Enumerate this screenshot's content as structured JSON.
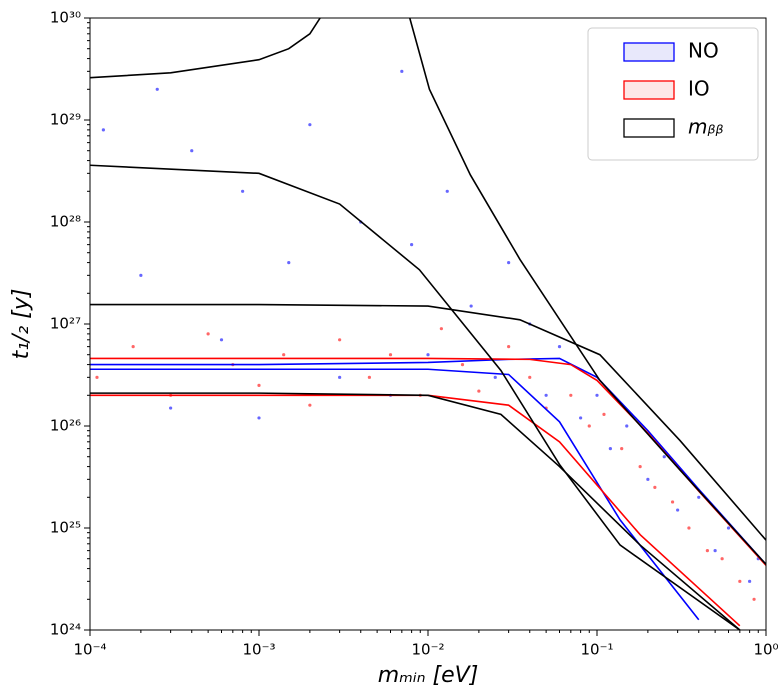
{
  "chart_data": {
    "type": "line",
    "xlabel": "mₘᵢₙ [eV]",
    "ylabel": "t₁/₂ [y]",
    "xscale": "log",
    "yscale": "log",
    "xlim": [
      0.0001,
      1
    ],
    "ylim": [
      1e+24,
      1e+30
    ],
    "xticks": [
      {
        "value": 0.0001,
        "label": "10⁻⁴"
      },
      {
        "value": 0.001,
        "label": "10⁻³"
      },
      {
        "value": 0.01,
        "label": "10⁻²"
      },
      {
        "value": 0.1,
        "label": "10⁻¹"
      },
      {
        "value": 1,
        "label": "10⁰"
      }
    ],
    "yticks": [
      {
        "value": 1e+24,
        "label": "10²⁴"
      },
      {
        "value": 1e+25,
        "label": "10²⁵"
      },
      {
        "value": 1e+26,
        "label": "10²⁶"
      },
      {
        "value": 1e+27,
        "label": "10²⁷"
      },
      {
        "value": 1e+28,
        "label": "10²⁸"
      },
      {
        "value": 1e+29,
        "label": "10²⁹"
      },
      {
        "value": 1e+30,
        "label": "10³⁰"
      }
    ],
    "legend": "upper right",
    "series": [
      {
        "name": "NO",
        "color": "#0000ff",
        "fill": "#e8e8fb",
        "points": {
          "x": [
            0.00012,
            0.0002,
            0.0003,
            0.0004,
            0.0006,
            0.0008,
            0.001,
            0.0015,
            0.002,
            0.003,
            0.004,
            0.006,
            0.008,
            0.01,
            0.013,
            0.018,
            0.025,
            0.03,
            0.04,
            0.05,
            0.06,
            0.08,
            0.1,
            0.12,
            0.15,
            0.2,
            0.25,
            0.3,
            0.4,
            0.5,
            0.6,
            0.8,
            0.9,
            0.00025,
            0.007
          ],
          "values": [
            8e+28,
            3e+27,
            1.5e+26,
            5e+28,
            7e+26,
            2e+28,
            1.2e+26,
            4e+27,
            9e+28,
            3e+26,
            1e+28,
            2e+26,
            6e+27,
            5e+26,
            2e+28,
            1.5e+27,
            3e+26,
            4e+27,
            1e+27,
            2e+26,
            6e+26,
            1.2e+26,
            2e+26,
            6e+25,
            1e+26,
            3e+25,
            5e+25,
            1.5e+25,
            2e+25,
            6e+24,
            1e+25,
            3e+24,
            5e+24,
            2e+29,
            3e+29
          ]
        },
        "lines": [
          {
            "x": [
              0.0001,
              0.001,
              0.01,
              0.03,
              0.06,
              0.1,
              0.2,
              0.4,
              1
            ],
            "values": [
              4e+26,
              4e+26,
              4.2e+26,
              4.5e+26,
              4.6e+26,
              3e+26,
              9e+25,
              2.4e+25,
              4.4e+24
            ]
          },
          {
            "x": [
              0.0001,
              0.001,
              0.01,
              0.03,
              0.06,
              0.137,
              0.4
            ],
            "values": [
              3.6e+26,
              3.6e+26,
              3.6e+26,
              3.2e+26,
              1.1e+26,
              1.2e+25,
              1.26e+24
            ]
          }
        ]
      },
      {
        "name": "IO",
        "color": "#ff0000",
        "fill": "#fde6e6",
        "points": {
          "x": [
            0.00011,
            0.00018,
            0.0003,
            0.0005,
            0.0007,
            0.001,
            0.0014,
            0.002,
            0.003,
            0.0045,
            0.006,
            0.009,
            0.012,
            0.016,
            0.02,
            0.03,
            0.04,
            0.05,
            0.07,
            0.09,
            0.11,
            0.14,
            0.18,
            0.22,
            0.28,
            0.35,
            0.45,
            0.55,
            0.7,
            0.85
          ],
          "values": [
            3e+26,
            6e+26,
            2e+26,
            8e+26,
            4e+26,
            2.5e+26,
            5e+26,
            1.6e+26,
            7e+26,
            3e+26,
            5e+26,
            2e+26,
            9e+26,
            4e+26,
            2.2e+26,
            6e+26,
            3e+26,
            1.5e+26,
            2e+26,
            1e+26,
            1.3e+26,
            6e+25,
            4e+25,
            2.5e+25,
            1.8e+25,
            1e+25,
            6e+24,
            5e+24,
            3e+24,
            2e+24
          ]
        },
        "lines": [
          {
            "x": [
              0.0001,
              0.001,
              0.01,
              0.04,
              0.07,
              0.1,
              0.2,
              0.4,
              1
            ],
            "values": [
              4.6e+26,
              4.6e+26,
              4.6e+26,
              4.5e+26,
              4e+26,
              2.8e+26,
              8.5e+25,
              2.3e+25,
              4.3e+24
            ]
          },
          {
            "x": [
              0.0001,
              0.001,
              0.01,
              0.03,
              0.06,
              0.18,
              0.7
            ],
            "values": [
              2e+26,
              2e+26,
              2e+26,
              1.6e+26,
              7e+25,
              8.6e+24,
              1.1e+24
            ]
          }
        ]
      },
      {
        "name": "mᵦᵦ",
        "color": "#000000",
        "fill": "#ffffff",
        "lines": [
          {
            "x": [
              0.0001,
              0.0003,
              0.001,
              0.0015,
              0.002,
              0.0023
            ],
            "values": [
              2.6e+29,
              2.9e+29,
              3.9e+29,
              5e+29,
              7e+29,
              1e+30
            ]
          },
          {
            "x": [
              0.0078,
              0.0102,
              0.0178,
              0.035,
              0.104,
              0.31,
              1
            ],
            "values": [
              1e+30,
              2e+29,
              2.9e+28,
              4.3e+27,
              2.8e+26,
              3.7e+25,
              4.4e+24
            ]
          },
          {
            "x": [
              0.0001,
              0.001,
              0.003,
              0.0089,
              0.027,
              0.06,
              0.137,
              0.7
            ],
            "values": [
              3.6e+28,
              3e+28,
              1.5e+28,
              3.4e+27,
              3.5e+26,
              4.2e+25,
              6.8e+24,
              1e+24
            ]
          },
          {
            "x": [
              0.0001,
              0.001,
              0.01,
              0.035,
              0.104,
              0.31,
              1
            ],
            "values": [
              1.55e+27,
              1.55e+27,
              1.5e+27,
              1.1e+27,
              5e+26,
              7.2e+25,
              7.6e+24
            ]
          },
          {
            "x": [
              0.0001,
              0.001,
              0.01,
              0.027,
              0.06,
              0.18,
              0.7
            ],
            "values": [
              2.1e+26,
              2.1e+26,
              2e+26,
              1.3e+26,
              4e+25,
              6.8e+24,
              1e+24
            ]
          }
        ]
      }
    ]
  }
}
